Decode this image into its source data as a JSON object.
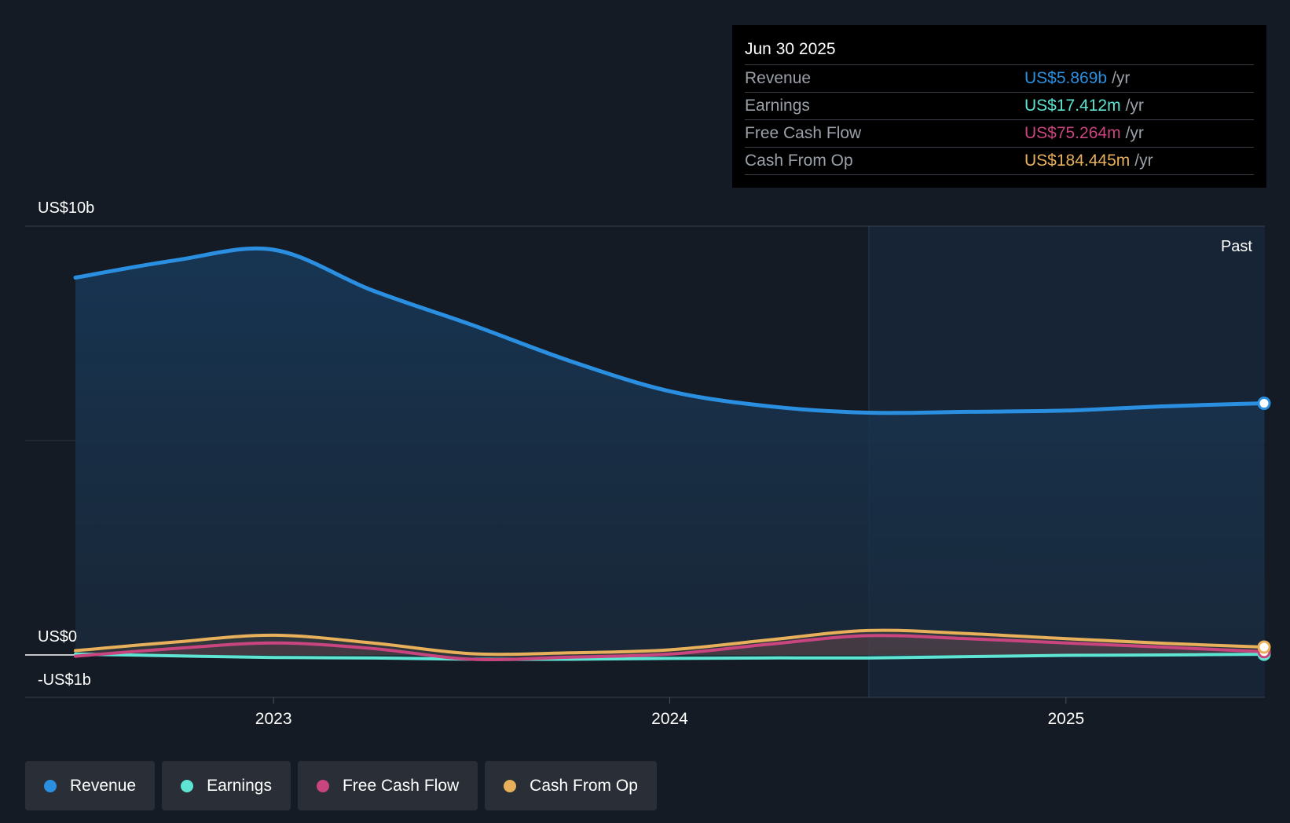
{
  "chart_data": {
    "type": "area",
    "x_ticks": [
      "2023",
      "2024",
      "2025"
    ],
    "y_labels": [
      "US$10b",
      "US$0",
      "-US$1b"
    ],
    "ylim": [
      -1000,
      10000
    ],
    "region_label": "Past",
    "series": [
      {
        "name": "Revenue",
        "color": "#2a8fe0",
        "points": [
          [
            2022.5,
            8.8
          ],
          [
            2022.75,
            9.2
          ],
          [
            2023.0,
            9.45
          ],
          [
            2023.25,
            8.5
          ],
          [
            2023.5,
            7.7
          ],
          [
            2023.75,
            6.85
          ],
          [
            2024.0,
            6.15
          ],
          [
            2024.25,
            5.8
          ],
          [
            2024.5,
            5.65
          ],
          [
            2024.75,
            5.67
          ],
          [
            2025.0,
            5.7
          ],
          [
            2025.25,
            5.8
          ],
          [
            2025.5,
            5.869
          ]
        ]
      },
      {
        "name": "Earnings",
        "color": "#5de4d2",
        "points": [
          [
            2022.5,
            0.02
          ],
          [
            2022.75,
            -0.02
          ],
          [
            2023.0,
            -0.06
          ],
          [
            2023.25,
            -0.07
          ],
          [
            2023.5,
            -0.1
          ],
          [
            2023.75,
            -0.1
          ],
          [
            2024.0,
            -0.08
          ],
          [
            2024.25,
            -0.07
          ],
          [
            2024.5,
            -0.07
          ],
          [
            2024.75,
            -0.04
          ],
          [
            2025.0,
            -0.01
          ],
          [
            2025.25,
            0.0
          ],
          [
            2025.5,
            0.017
          ]
        ]
      },
      {
        "name": "Free Cash Flow",
        "color": "#c9457f",
        "points": [
          [
            2022.5,
            -0.03
          ],
          [
            2022.75,
            0.15
          ],
          [
            2023.0,
            0.28
          ],
          [
            2023.25,
            0.15
          ],
          [
            2023.5,
            -0.1
          ],
          [
            2023.75,
            -0.05
          ],
          [
            2024.0,
            0.02
          ],
          [
            2024.25,
            0.25
          ],
          [
            2024.5,
            0.45
          ],
          [
            2024.75,
            0.38
          ],
          [
            2025.0,
            0.28
          ],
          [
            2025.25,
            0.18
          ],
          [
            2025.5,
            0.075
          ]
        ]
      },
      {
        "name": "Cash From Op",
        "color": "#e8b05a",
        "points": [
          [
            2022.5,
            0.1
          ],
          [
            2022.75,
            0.3
          ],
          [
            2023.0,
            0.46
          ],
          [
            2023.25,
            0.28
          ],
          [
            2023.5,
            0.03
          ],
          [
            2023.75,
            0.05
          ],
          [
            2024.0,
            0.12
          ],
          [
            2024.25,
            0.35
          ],
          [
            2024.5,
            0.57
          ],
          [
            2024.75,
            0.5
          ],
          [
            2025.0,
            0.38
          ],
          [
            2025.25,
            0.27
          ],
          [
            2025.5,
            0.184
          ]
        ]
      }
    ]
  },
  "tooltip": {
    "date": "Jun 30 2025",
    "rows": [
      {
        "label": "Revenue",
        "value": "US$5.869b",
        "unit": "/yr",
        "color": "#2a8fe0"
      },
      {
        "label": "Earnings",
        "value": "US$17.412m",
        "unit": "/yr",
        "color": "#5de4d2"
      },
      {
        "label": "Free Cash Flow",
        "value": "US$75.264m",
        "unit": "/yr",
        "color": "#c9457f"
      },
      {
        "label": "Cash From Op",
        "value": "US$184.445m",
        "unit": "/yr",
        "color": "#e8b05a"
      }
    ]
  },
  "legend": [
    {
      "label": "Revenue",
      "color": "#2a8fe0"
    },
    {
      "label": "Earnings",
      "color": "#5de4d2"
    },
    {
      "label": "Free Cash Flow",
      "color": "#c9457f"
    },
    {
      "label": "Cash From Op",
      "color": "#e8b05a"
    }
  ]
}
